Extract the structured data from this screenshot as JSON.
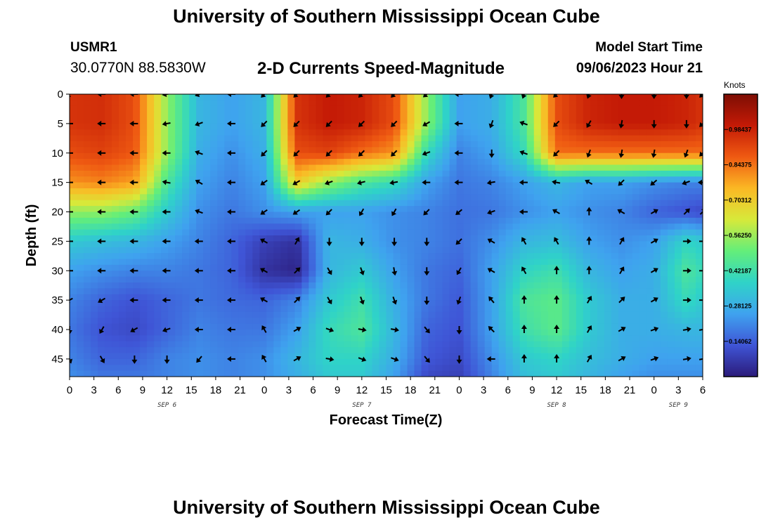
{
  "header": {
    "main_title": "University of Southern Mississippi Ocean Cube",
    "station_id": "USMR1",
    "station_coords": "30.0770N  88.5830W",
    "chart_title": "2-D Currents Speed-Magnitude",
    "model_start_label": "Model Start Time",
    "model_start_value": "09/06/2023 Hour 21"
  },
  "footer": {
    "repeated_title": "University of Southern Mississippi Ocean Cube"
  },
  "chart_data": {
    "type": "heatmap",
    "title": "2-D Currents Speed-Magnitude",
    "xlabel": "Forecast Time(Z)",
    "ylabel": "Depth (ft)",
    "x_ticks": [
      "0",
      "3",
      "6",
      "9",
      "12",
      "15",
      "18",
      "21",
      "0",
      "3",
      "6",
      "9",
      "12",
      "15",
      "18",
      "21",
      "0",
      "3",
      "6",
      "9",
      "12",
      "15",
      "18",
      "21",
      "0",
      "3",
      "6"
    ],
    "x_range_hours": [
      0,
      78
    ],
    "date_labels": [
      {
        "label": "SEP 6",
        "hour": 12
      },
      {
        "label": "SEP 7",
        "hour": 36
      },
      {
        "label": "SEP 8",
        "hour": 60
      },
      {
        "label": "SEP 9",
        "hour": 75
      }
    ],
    "y_ticks": [
      0,
      5,
      10,
      15,
      20,
      25,
      30,
      35,
      40,
      45
    ],
    "ylim": [
      48,
      0
    ],
    "colorbar": {
      "unit": "Knots",
      "range": [
        0.0,
        1.125
      ],
      "tick_values": [
        0.14062,
        0.28125,
        0.42187,
        0.5625,
        0.70312,
        0.84375,
        0.98437
      ],
      "tick_labels": [
        "0.14062",
        "0.28125",
        "0.42187",
        "0.56250",
        "0.70312",
        "0.84375",
        "0.98437"
      ],
      "colors": [
        "#2b1b7a",
        "#3f55d6",
        "#3fa2ef",
        "#2fd3c8",
        "#63ee7a",
        "#d7e93a",
        "#fbb824",
        "#ef5a12",
        "#c41a06",
        "#7d0e04"
      ]
    },
    "speed_field": {
      "hours": [
        0,
        4,
        8,
        12,
        16,
        20,
        24,
        28,
        32,
        36,
        40,
        44,
        48,
        52,
        56,
        60,
        64,
        68,
        72,
        76,
        78
      ],
      "depths": [
        0,
        5,
        10,
        15,
        20,
        25,
        30,
        35,
        40,
        45,
        48
      ],
      "speed_knots": [
        [
          0.95,
          0.96,
          0.9,
          0.55,
          0.3,
          0.25,
          0.3,
          0.95,
          1.0,
          0.98,
          0.9,
          0.55,
          0.25,
          0.28,
          0.45,
          0.9,
          0.98,
          1.0,
          1.0,
          0.98,
          0.95
        ],
        [
          0.95,
          0.96,
          0.9,
          0.55,
          0.3,
          0.25,
          0.3,
          0.95,
          1.0,
          0.98,
          0.9,
          0.55,
          0.25,
          0.28,
          0.45,
          0.9,
          0.98,
          1.0,
          1.0,
          0.98,
          0.95
        ],
        [
          0.9,
          0.92,
          0.88,
          0.55,
          0.28,
          0.22,
          0.28,
          0.9,
          0.92,
          0.85,
          0.8,
          0.4,
          0.2,
          0.25,
          0.4,
          0.85,
          0.85,
          0.85,
          0.85,
          0.85,
          0.85
        ],
        [
          0.8,
          0.82,
          0.78,
          0.45,
          0.25,
          0.2,
          0.25,
          0.7,
          0.55,
          0.45,
          0.4,
          0.25,
          0.18,
          0.2,
          0.25,
          0.3,
          0.25,
          0.25,
          0.22,
          0.2,
          0.2
        ],
        [
          0.55,
          0.55,
          0.5,
          0.35,
          0.22,
          0.18,
          0.22,
          0.25,
          0.25,
          0.25,
          0.22,
          0.2,
          0.17,
          0.18,
          0.22,
          0.25,
          0.22,
          0.2,
          0.15,
          0.12,
          0.1
        ],
        [
          0.35,
          0.32,
          0.3,
          0.25,
          0.2,
          0.15,
          0.08,
          0.05,
          0.3,
          0.28,
          0.22,
          0.2,
          0.17,
          0.22,
          0.3,
          0.32,
          0.25,
          0.22,
          0.25,
          0.38,
          0.35
        ],
        [
          0.25,
          0.22,
          0.2,
          0.2,
          0.18,
          0.15,
          0.05,
          0.02,
          0.3,
          0.35,
          0.25,
          0.18,
          0.15,
          0.25,
          0.38,
          0.42,
          0.3,
          0.25,
          0.28,
          0.45,
          0.4
        ],
        [
          0.2,
          0.15,
          0.12,
          0.15,
          0.18,
          0.16,
          0.15,
          0.2,
          0.35,
          0.42,
          0.28,
          0.18,
          0.13,
          0.25,
          0.45,
          0.48,
          0.35,
          0.28,
          0.28,
          0.4,
          0.35
        ],
        [
          0.18,
          0.12,
          0.1,
          0.15,
          0.2,
          0.18,
          0.18,
          0.25,
          0.4,
          0.45,
          0.3,
          0.15,
          0.12,
          0.25,
          0.42,
          0.48,
          0.35,
          0.28,
          0.28,
          0.3,
          0.3
        ],
        [
          0.2,
          0.15,
          0.15,
          0.2,
          0.22,
          0.2,
          0.22,
          0.3,
          0.38,
          0.38,
          0.28,
          0.13,
          0.1,
          0.22,
          0.35,
          0.38,
          0.32,
          0.28,
          0.25,
          0.25,
          0.25
        ],
        [
          0.22,
          0.18,
          0.18,
          0.2,
          0.22,
          0.2,
          0.22,
          0.28,
          0.35,
          0.35,
          0.25,
          0.1,
          0.08,
          0.2,
          0.32,
          0.35,
          0.3,
          0.25,
          0.22,
          0.22,
          0.22
        ]
      ]
    },
    "vector_field": {
      "unit": "direction_deg_clockwise_from_north",
      "hours": [
        0,
        4,
        8,
        12,
        16,
        20,
        24,
        28,
        32,
        36,
        40,
        44,
        48,
        52,
        56,
        60,
        64,
        68,
        72,
        76,
        78
      ],
      "depths": [
        0,
        5,
        10,
        15,
        20,
        25,
        30,
        35,
        40,
        45
      ],
      "direction_deg": [
        [
          225,
          270,
          270,
          260,
          250,
          270,
          225,
          225,
          225,
          225,
          225,
          230,
          270,
          200,
          200,
          225,
          200,
          180,
          180,
          180,
          225
        ],
        [
          270,
          270,
          270,
          260,
          250,
          270,
          225,
          225,
          225,
          225,
          225,
          240,
          270,
          200,
          290,
          225,
          210,
          190,
          180,
          180,
          225
        ],
        [
          270,
          270,
          270,
          270,
          290,
          270,
          225,
          225,
          225,
          225,
          225,
          250,
          270,
          180,
          290,
          225,
          200,
          190,
          190,
          200,
          225
        ],
        [
          270,
          270,
          270,
          280,
          300,
          270,
          235,
          240,
          250,
          255,
          260,
          270,
          270,
          260,
          270,
          280,
          300,
          225,
          230,
          250,
          270
        ],
        [
          270,
          270,
          270,
          270,
          290,
          270,
          235,
          235,
          225,
          210,
          210,
          225,
          230,
          250,
          270,
          300,
          0,
          300,
          60,
          45,
          45
        ],
        [
          270,
          270,
          270,
          270,
          270,
          270,
          300,
          30,
          180,
          180,
          180,
          180,
          225,
          300,
          330,
          330,
          0,
          30,
          60,
          90,
          90
        ],
        [
          270,
          270,
          270,
          270,
          270,
          270,
          300,
          45,
          150,
          160,
          170,
          180,
          210,
          300,
          330,
          0,
          0,
          30,
          60,
          90,
          90
        ],
        [
          240,
          240,
          270,
          270,
          270,
          270,
          300,
          45,
          150,
          160,
          160,
          180,
          200,
          320,
          0,
          0,
          30,
          45,
          60,
          90,
          90
        ],
        [
          180,
          210,
          240,
          250,
          270,
          270,
          330,
          60,
          110,
          100,
          100,
          140,
          180,
          315,
          0,
          0,
          30,
          60,
          70,
          80,
          80
        ],
        [
          160,
          150,
          180,
          180,
          220,
          270,
          330,
          60,
          100,
          110,
          110,
          140,
          180,
          270,
          0,
          0,
          30,
          60,
          70,
          80,
          80
        ]
      ]
    }
  }
}
